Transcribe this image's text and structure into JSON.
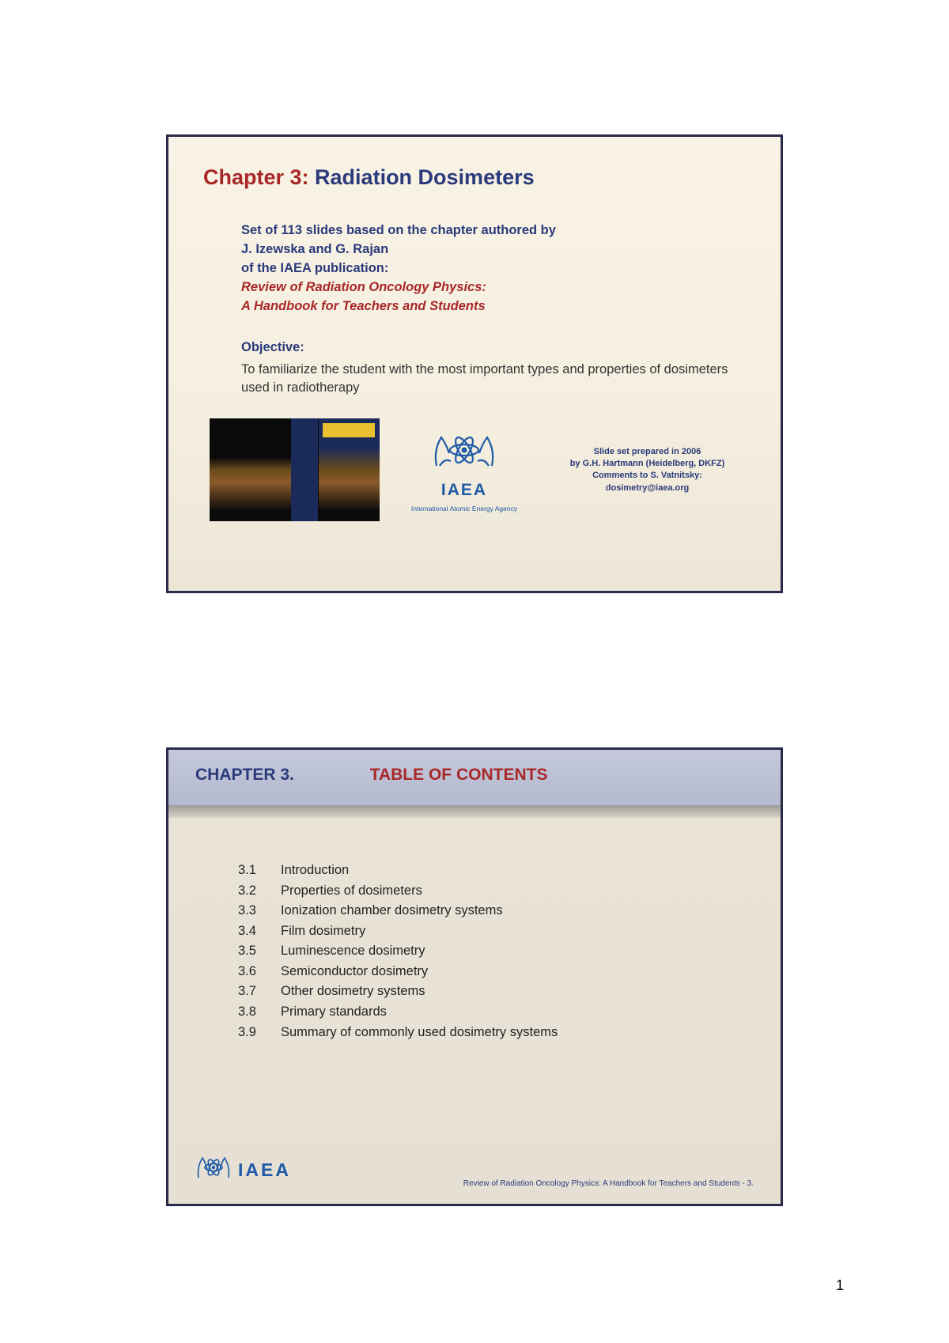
{
  "page_number": "1",
  "slide1": {
    "chapter_label": "Chapter 3:",
    "title": "Radiation Dosimeters",
    "intro_line1": "Set of 113 slides based on the chapter authored by",
    "intro_line2": "J. Izewska and G. Rajan",
    "intro_line3": "of the IAEA publication:",
    "pub_title_1": "Review of Radiation Oncology Physics:",
    "pub_title_2": "A Handbook for Teachers and Students",
    "objective_label": "Objective:",
    "objective_text": "To familiarize the student with the most important types and properties of dosimeters used in radiotherapy",
    "iaea_label": "IAEA",
    "iaea_full": "International Atomic Energy Agency",
    "credits_1": "Slide set prepared in 2006",
    "credits_2": "by G.H. Hartmann (Heidelberg, DKFZ)",
    "credits_3": "Comments to S. Vatnitsky:",
    "credits_4": "dosimetry@iaea.org"
  },
  "slide2": {
    "chapter_num": "CHAPTER 3.",
    "toc_label": "TABLE OF CONTENTS",
    "items": [
      {
        "num": "3.1",
        "text": "Introduction"
      },
      {
        "num": "3.2",
        "text": "Properties of dosimeters"
      },
      {
        "num": "3.3",
        "text": "Ionization chamber dosimetry systems"
      },
      {
        "num": "3.4",
        "text": "Film dosimetry"
      },
      {
        "num": "3.5",
        "text": "Luminescence dosimetry"
      },
      {
        "num": "3.6",
        "text": "Semiconductor dosimetry"
      },
      {
        "num": "3.7",
        "text": "Other dosimetry systems"
      },
      {
        "num": "3.8",
        "text": "Primary standards"
      },
      {
        "num": "3.9",
        "text": "Summary of commonly used dosimetry systems"
      }
    ],
    "iaea_label": "IAEA",
    "footer_text": "Review of Radiation Oncology Physics: A Handbook for Teachers and Students - 3."
  },
  "colors": {
    "red": "#a82828",
    "navy": "#2a3a7a",
    "iaea_blue": "#1e5aa8",
    "slide1_bg_top": "#f8f3e6",
    "slide2_bg": "#eae4d8",
    "header_bg": "#c4c8da",
    "border": "#2a2a4a"
  }
}
